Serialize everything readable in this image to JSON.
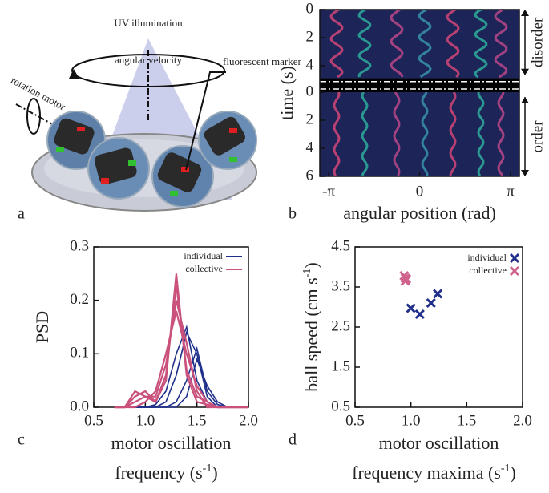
{
  "panel_labels": [
    "a",
    "b",
    "c",
    "d"
  ],
  "diagram": {
    "uv": "UV illumination",
    "angular_velocity": "angular velocity",
    "marker": "fluorescent marker",
    "motor": "rotation motor"
  },
  "kymograph": {
    "xlabel": "angular position (rad)",
    "ylabel": "time (s)",
    "xlim": [
      -3.45,
      3.45
    ],
    "xticks": [
      {
        "value": -3.1416,
        "label": "-π"
      },
      0,
      {
        "value": 3.1416,
        "label": "π"
      }
    ],
    "top_ylim": [
      0,
      4.9
    ],
    "top_yticks": [
      0,
      2,
      4
    ],
    "bottom_ylim": [
      0,
      6
    ],
    "bottom_yticks": [
      0,
      2,
      4,
      6
    ],
    "top_phase": "disorder",
    "bottom_phase": "order"
  },
  "chart_data": [
    {
      "type": "line",
      "ylabel": "PSD",
      "xlabel": [
        "motor oscillation",
        "frequency (s",
        "-1",
        ")"
      ],
      "xlim": [
        0.5,
        2.0
      ],
      "ylim": [
        0,
        0.3
      ],
      "xticks": [
        {
          "value": 0.5,
          "label": "0.5"
        },
        {
          "value": 1.0,
          "label": "1.0"
        },
        {
          "value": 1.5,
          "label": "1.5"
        },
        {
          "value": 2.0,
          "label": "2.0"
        }
      ],
      "yticks": [
        {
          "value": 0,
          "label": "0.0"
        },
        {
          "value": 0.1,
          "label": "0.1"
        },
        {
          "value": 0.2,
          "label": "0.2"
        },
        {
          "value": 0.3,
          "label": "0.3"
        }
      ],
      "x": [
        0.7,
        0.8,
        0.9,
        1.0,
        1.1,
        1.2,
        1.3,
        1.4,
        1.5,
        1.6,
        1.7,
        1.8,
        1.9,
        2.0
      ],
      "legend": "upper right",
      "series": [
        {
          "name": "individual",
          "color": "#1f2f8a",
          "values": [
            [
              0,
              0,
              0,
              0,
              0.005,
              0.03,
              0.1,
              0.15,
              0.05,
              0.01,
              0,
              0,
              0,
              0
            ],
            [
              0,
              0,
              0,
              0,
              0,
              0.01,
              0.06,
              0.14,
              0.1,
              0.02,
              0,
              0,
              0,
              0
            ],
            [
              0,
              0,
              0,
              0,
              0,
              0,
              0.01,
              0.05,
              0.11,
              0.03,
              0.005,
              0,
              0,
              0
            ],
            [
              0,
              0,
              0,
              0,
              0,
              0,
              0,
              0.02,
              0.09,
              0.04,
              0.01,
              0,
              0,
              0
            ]
          ]
        },
        {
          "name": "collective",
          "color": "#c9517c",
          "values": [
            [
              0,
              0,
              0.03,
              0.02,
              0.01,
              0.05,
              0.25,
              0.06,
              0.01,
              0.005,
              0,
              0,
              0,
              0
            ],
            [
              0,
              0,
              0.02,
              0.03,
              0.01,
              0.06,
              0.23,
              0.07,
              0.02,
              0.01,
              0,
              0,
              0,
              0
            ],
            [
              0,
              0,
              0.01,
              0.02,
              0.02,
              0.08,
              0.2,
              0.12,
              0.03,
              0,
              0,
              0,
              0,
              0
            ],
            [
              0,
              0,
              0,
              0.01,
              0.03,
              0.1,
              0.18,
              0.1,
              0.04,
              0.01,
              0,
              0,
              0,
              0
            ]
          ]
        }
      ]
    },
    {
      "type": "scatter",
      "ylabel": [
        "ball speed (cm s",
        "-1",
        ")"
      ],
      "xlabel": [
        "motor oscillation",
        "frequency maxima (s",
        "-1",
        ")"
      ],
      "xlim": [
        0.5,
        2.0
      ],
      "ylim": [
        0.5,
        4.5
      ],
      "xticks": [
        {
          "value": 0.5,
          "label": "0.5"
        },
        {
          "value": 1.0,
          "label": "1.0"
        },
        {
          "value": 1.5,
          "label": "1.5"
        },
        {
          "value": 2.0,
          "label": "2.0"
        }
      ],
      "yticks": [
        0.5,
        1.5,
        2.5,
        3.5,
        4.5
      ],
      "legend": "upper right",
      "series": [
        {
          "name": "individual",
          "color": "#1f2f8a",
          "x": [
            1.0,
            1.08,
            1.18,
            1.24
          ],
          "y": [
            2.97,
            2.82,
            3.1,
            3.33
          ]
        },
        {
          "name": "collective",
          "color": "#d0638d",
          "x": [
            0.94,
            0.95,
            0.95,
            0.96
          ],
          "y": [
            3.78,
            3.72,
            3.65,
            3.7
          ]
        }
      ]
    }
  ]
}
